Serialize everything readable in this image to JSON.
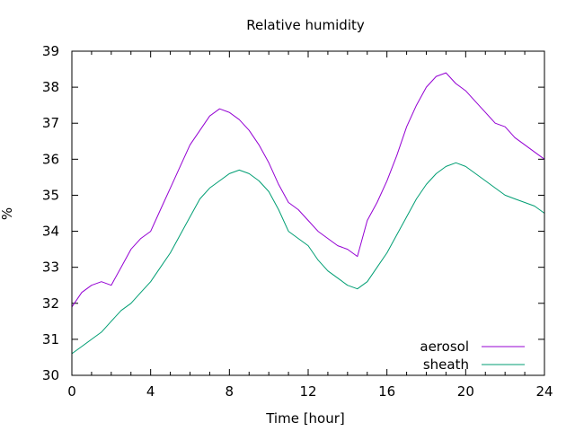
{
  "chart_data": {
    "type": "line",
    "title": "Relative humidity",
    "xlabel": "Time [hour]",
    "ylabel": "%",
    "xlim": [
      0,
      24
    ],
    "ylim": [
      30,
      39
    ],
    "xticks": [
      "0",
      "4",
      "8",
      "12",
      "16",
      "20",
      "24"
    ],
    "yticks": [
      "30",
      "31",
      "32",
      "33",
      "34",
      "35",
      "36",
      "37",
      "38",
      "39"
    ],
    "grid": false,
    "legend_position": "bottom-right",
    "series": [
      {
        "name": "aerosol",
        "color": "#9400d3",
        "x": [
          0,
          0.5,
          1,
          1.5,
          2,
          2.5,
          3,
          3.5,
          4,
          4.5,
          5,
          5.5,
          6,
          6.5,
          7,
          7.5,
          8,
          8.5,
          9,
          9.5,
          10,
          10.5,
          11,
          11.5,
          12,
          12.5,
          13,
          13.5,
          14,
          14.5,
          15,
          15.5,
          16,
          16.5,
          17,
          17.5,
          18,
          18.5,
          19,
          19.5,
          20,
          20.5,
          21,
          21.5,
          22,
          22.5,
          23,
          23.5,
          24
        ],
        "y": [
          31.9,
          32.3,
          32.5,
          32.6,
          32.5,
          33.0,
          33.5,
          33.8,
          34.0,
          34.6,
          35.2,
          35.8,
          36.4,
          36.8,
          37.2,
          37.4,
          37.3,
          37.1,
          36.8,
          36.4,
          35.9,
          35.3,
          34.8,
          34.6,
          34.3,
          34.0,
          33.8,
          33.6,
          33.5,
          33.3,
          34.3,
          34.8,
          35.4,
          36.1,
          36.9,
          37.5,
          38.0,
          38.3,
          38.4,
          38.1,
          37.9,
          37.6,
          37.3,
          37.0,
          36.9,
          36.6,
          36.4,
          36.2,
          36.0
        ]
      },
      {
        "name": "sheath",
        "color": "#009e73",
        "x": [
          0,
          0.5,
          1,
          1.5,
          2,
          2.5,
          3,
          3.5,
          4,
          4.5,
          5,
          5.5,
          6,
          6.5,
          7,
          7.5,
          8,
          8.5,
          9,
          9.5,
          10,
          10.5,
          11,
          11.5,
          12,
          12.5,
          13,
          13.5,
          14,
          14.5,
          15,
          15.5,
          16,
          16.5,
          17,
          17.5,
          18,
          18.5,
          19,
          19.5,
          20,
          20.5,
          21,
          21.5,
          22,
          22.5,
          23,
          23.5,
          24
        ],
        "y": [
          30.6,
          30.8,
          31.0,
          31.2,
          31.5,
          31.8,
          32.0,
          32.3,
          32.6,
          33.0,
          33.4,
          33.9,
          34.4,
          34.9,
          35.2,
          35.4,
          35.6,
          35.7,
          35.6,
          35.4,
          35.1,
          34.6,
          34.0,
          33.8,
          33.6,
          33.2,
          32.9,
          32.7,
          32.5,
          32.4,
          32.6,
          33.0,
          33.4,
          33.9,
          34.4,
          34.9,
          35.3,
          35.6,
          35.8,
          35.9,
          35.8,
          35.6,
          35.4,
          35.2,
          35.0,
          34.9,
          34.8,
          34.7,
          34.5
        ]
      }
    ]
  }
}
